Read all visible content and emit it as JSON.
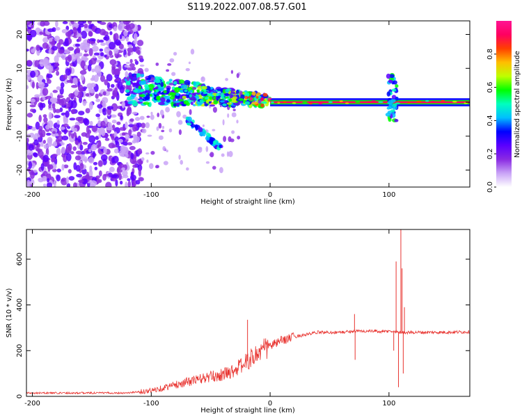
{
  "title": "S119.2022.007.08.57.G01",
  "chart_data": [
    {
      "type": "heatmap",
      "title": "S119.2022.007.08.57.G01",
      "xlabel": "Height of straight line (km)",
      "ylabel": "Frequency (Hz)",
      "xlim": [
        -205,
        168
      ],
      "ylim": [
        -25,
        24
      ],
      "xticks": [
        -200,
        -100,
        0,
        100
      ],
      "yticks": [
        -20,
        -10,
        0,
        10,
        20
      ],
      "colorbar": {
        "label": "Normalized spectral amplitude",
        "ticks": [
          "0.0",
          "0.2",
          "0.4",
          "0.6",
          "0.8"
        ],
        "range": [
          0,
          1
        ],
        "colors": [
          "#ffffff",
          "#c9a3f7",
          "#8a2be2",
          "#5a00ff",
          "#0000ff",
          "#00bfff",
          "#00ffbf",
          "#00ff00",
          "#bfff00",
          "#ffbf00",
          "#ff4000",
          "#ff0060",
          "#ff1493"
        ]
      },
      "description_of_signal": {
        "noise_region_x": [
          -205,
          -120
        ],
        "main_line_frequency_hz": 0,
        "spread_region_x": [
          -120,
          0
        ],
        "tone_segments": [
          {
            "x_start": 0,
            "x_end": 168,
            "frequency": 0,
            "level": 0.95
          },
          {
            "x_start": -120,
            "x_end": -95,
            "frequency": 4,
            "level": 0.45
          },
          {
            "x_start": -95,
            "x_end": -50,
            "frequency": 3,
            "level": 0.4
          },
          {
            "x_start": -50,
            "x_end": -20,
            "frequency": 1,
            "level": 0.5
          },
          {
            "x_start": -20,
            "x_end": 0,
            "frequency": 1,
            "level": 0.8
          }
        ],
        "disturbance_x": 103,
        "disturbance_freq_range": [
          -6,
          8
        ],
        "branch": {
          "x_start": -70,
          "x_end": -40,
          "freq_start": -5,
          "freq_end": -14
        }
      }
    },
    {
      "type": "line",
      "xlabel": "Height of straight line (km)",
      "ylabel": "SNR (10 * v/v)",
      "xlim": [
        -205,
        168
      ],
      "ylim": [
        0,
        730
      ],
      "xticks": [
        -200,
        -100,
        0,
        100
      ],
      "yticks": [
        0,
        200,
        400,
        600
      ],
      "color": "#e8322e",
      "series": [
        {
          "profile_x": [
            -205,
            -180,
            -150,
            -120,
            -100,
            -80,
            -60,
            -40,
            -30,
            -20,
            -10,
            0,
            10,
            20,
            30,
            40,
            50,
            60,
            70,
            80,
            90,
            95,
            100,
            110,
            120,
            140,
            168
          ],
          "profile_y": [
            15,
            15,
            15,
            15,
            25,
            50,
            75,
            95,
            115,
            150,
            190,
            220,
            245,
            260,
            270,
            280,
            280,
            280,
            285,
            285,
            285,
            282,
            285,
            280,
            280,
            280,
            282
          ],
          "spikes": [
            {
              "x": -19,
              "y": 335
            },
            {
              "x": 71,
              "y": 360
            },
            {
              "x": 71.5,
              "y": 160
            },
            {
              "x": 106,
              "y": 590
            },
            {
              "x": 108,
              "y": 40
            },
            {
              "x": 110,
              "y": 730
            },
            {
              "x": 111,
              "y": 560
            },
            {
              "x": 112,
              "y": 100
            },
            {
              "x": 113,
              "y": 390
            },
            {
              "x": 104,
              "y": 200
            }
          ]
        }
      ]
    }
  ]
}
